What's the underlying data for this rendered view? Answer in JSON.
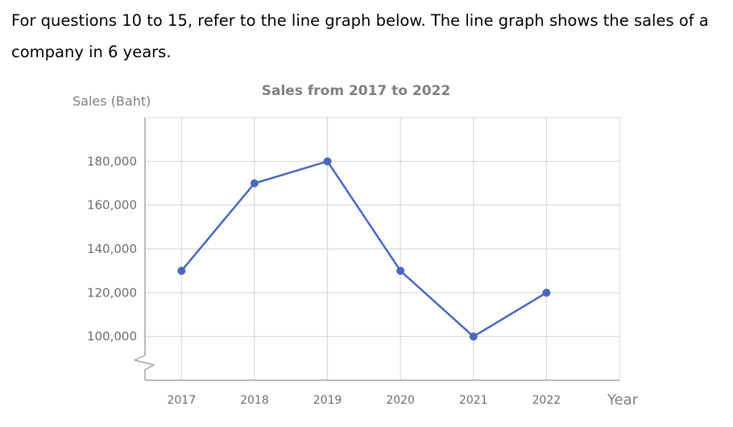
{
  "question": {
    "text": "For questions 10 to 15, refer to the line graph below. The line graph shows the sales of a company in 6 years."
  },
  "chart_data": {
    "type": "line",
    "title": "Sales from 2017 to 2022",
    "xlabel": "Year",
    "ylabel": "Sales (Baht)",
    "categories": [
      "2017",
      "2018",
      "2019",
      "2020",
      "2021",
      "2022"
    ],
    "series": [
      {
        "values": [
          130000,
          170000,
          180000,
          130000,
          100000,
          120000
        ],
        "color": "#4a69bd"
      }
    ],
    "yticks": [
      100000,
      120000,
      140000,
      160000,
      180000
    ],
    "ytick_labels": [
      "100,000",
      "120,000",
      "140,000",
      "160,000",
      "180,000"
    ],
    "ylim": [
      80000,
      200000
    ],
    "axis_break": true,
    "grid": true,
    "legend": "none"
  }
}
